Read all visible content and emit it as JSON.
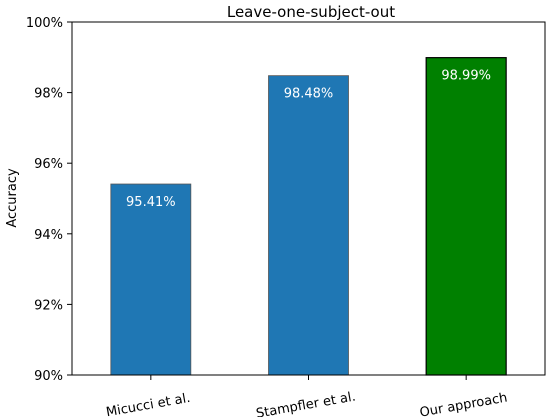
{
  "chart_data": {
    "type": "bar",
    "title": "Leave-one-subject-out",
    "xlabel": "",
    "ylabel": "Accuracy",
    "categories": [
      "Micucci et al.",
      "Stampfler et al.",
      "Our approach"
    ],
    "values": [
      95.41,
      98.48,
      98.99
    ],
    "value_labels": [
      "95.41%",
      "98.48%",
      "98.99%"
    ],
    "ylim": [
      90,
      100
    ],
    "yticks": [
      90,
      92,
      94,
      96,
      98,
      100
    ],
    "ytick_labels": [
      "90%",
      "92%",
      "94%",
      "96%",
      "98%",
      "100%"
    ],
    "bar_colors": [
      "#1f77b4",
      "#1f77b4",
      "#008000"
    ],
    "grid": false,
    "legend": "none"
  }
}
